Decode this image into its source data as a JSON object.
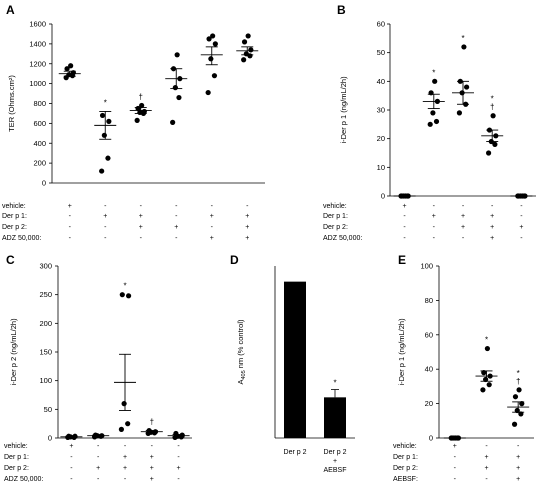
{
  "chart_data": [
    {
      "panel": "A",
      "type": "scatter",
      "ylabel": "TER (Ohms.cm²)",
      "ylim": [
        0,
        1600
      ],
      "yticks": [
        0,
        200,
        400,
        600,
        800,
        1000,
        1200,
        1400,
        1600
      ],
      "conditions": [
        {
          "label": "vehicle:",
          "marks": [
            "+",
            "-",
            "-",
            "-",
            "-",
            "-"
          ]
        },
        {
          "label": "Der p 1:",
          "marks": [
            "-",
            "+",
            "+",
            "-",
            "+",
            "+"
          ]
        },
        {
          "label": "Der p 2:",
          "marks": [
            "-",
            "-",
            "+",
            "+",
            "-",
            "+"
          ]
        },
        {
          "label": "ADZ 50,000:",
          "marks": [
            "-",
            "-",
            "-",
            "-",
            "+",
            "+"
          ]
        }
      ],
      "groups": [
        {
          "points": [
            1060,
            1080,
            1090,
            1110,
            1150,
            1180
          ],
          "mean": 1100,
          "sem_low": 1075,
          "sem_high": 1125,
          "mark": ""
        },
        {
          "points": [
            120,
            250,
            480,
            620,
            680
          ],
          "mean": 580,
          "sem_low": 440,
          "sem_high": 720,
          "mark": "*"
        },
        {
          "points": [
            630,
            700,
            710,
            720,
            750,
            780
          ],
          "mean": 730,
          "sem_low": 700,
          "sem_high": 760,
          "mark": "†"
        },
        {
          "points": [
            610,
            860,
            960,
            1050,
            1150,
            1290
          ],
          "mean": 1050,
          "sem_low": 950,
          "sem_high": 1150,
          "mark": ""
        },
        {
          "points": [
            910,
            1080,
            1250,
            1400,
            1450,
            1480
          ],
          "mean": 1290,
          "sem_low": 1190,
          "sem_high": 1370,
          "mark": ""
        },
        {
          "points": [
            1240,
            1280,
            1300,
            1340,
            1420,
            1480
          ],
          "mean": 1330,
          "sem_low": 1290,
          "sem_high": 1370,
          "mark": ""
        }
      ]
    },
    {
      "panel": "B",
      "type": "scatter",
      "ylabel": "i-Der p 1 (ng/mL/2h)",
      "ylim": [
        0,
        60
      ],
      "yticks": [
        0,
        10,
        20,
        30,
        40,
        50,
        60
      ],
      "conditions": [
        {
          "label": "vehicle:",
          "marks": [
            "+",
            "-",
            "-",
            "-",
            "-"
          ]
        },
        {
          "label": "Der p 1:",
          "marks": [
            "-",
            "+",
            "+",
            "+",
            "-"
          ]
        },
        {
          "label": "Der p 2:",
          "marks": [
            "-",
            "-",
            "+",
            "+",
            "+"
          ]
        },
        {
          "label": "ADZ 50,000:",
          "marks": [
            "-",
            "-",
            "-",
            "+",
            "-"
          ]
        }
      ],
      "groups": [
        {
          "points": [
            0,
            0,
            0,
            0,
            0,
            0
          ],
          "mean": 0,
          "sem_low": 0,
          "sem_high": 0,
          "mark": ""
        },
        {
          "points": [
            25,
            26,
            29,
            33,
            36,
            40
          ],
          "mean": 33,
          "sem_low": 30.5,
          "sem_high": 35.5,
          "mark": "*"
        },
        {
          "points": [
            29,
            32,
            36,
            38,
            40,
            52
          ],
          "mean": 36,
          "sem_low": 32,
          "sem_high": 40,
          "mark": "*"
        },
        {
          "points": [
            15,
            18,
            19,
            21,
            23,
            28
          ],
          "mean": 21,
          "sem_low": 19,
          "sem_high": 23,
          "mark": "*†"
        },
        {
          "points": [
            0,
            0,
            0,
            0,
            0,
            0
          ],
          "mean": 0,
          "sem_low": 0,
          "sem_high": 0,
          "mark": ""
        }
      ]
    },
    {
      "panel": "C",
      "type": "scatter",
      "ylabel": "i-Der p 2 (ng/mL/2h)",
      "ylim": [
        0,
        300
      ],
      "yticks": [
        0,
        50,
        100,
        150,
        200,
        250,
        300
      ],
      "conditions": [
        {
          "label": "vehicle:",
          "marks": [
            "+",
            "-",
            "-",
            "-",
            "-"
          ]
        },
        {
          "label": "Der p 1:",
          "marks": [
            "-",
            "-",
            "+",
            "+",
            "-"
          ]
        },
        {
          "label": "Der p 2:",
          "marks": [
            "-",
            "+",
            "+",
            "+",
            "+"
          ]
        },
        {
          "label": "ADZ 50,000:",
          "marks": [
            "-",
            "-",
            "-",
            "+",
            "-"
          ]
        }
      ],
      "groups": [
        {
          "points": [
            1,
            1,
            2,
            3,
            3
          ],
          "mean": 2,
          "sem_low": 1,
          "sem_high": 3,
          "mark": ""
        },
        {
          "points": [
            2,
            3,
            4,
            4,
            5
          ],
          "mean": 4,
          "sem_low": 3,
          "sem_high": 5,
          "mark": ""
        },
        {
          "points": [
            15,
            25,
            60,
            248,
            250
          ],
          "mean": 97,
          "sem_low": 48,
          "sem_high": 146,
          "mark": "*"
        },
        {
          "points": [
            8,
            9,
            10,
            11,
            13
          ],
          "mean": 11,
          "sem_low": 9,
          "sem_high": 13,
          "mark": "†"
        },
        {
          "points": [
            1,
            2,
            3,
            5,
            8
          ],
          "mean": 4,
          "sem_low": 2,
          "sem_high": 6,
          "mark": ""
        }
      ]
    },
    {
      "panel": "D",
      "type": "bar",
      "ylabel": "A405 nm (% control)",
      "ylim": [
        0,
        110
      ],
      "categories": [
        "Der p 2",
        "Der p 2 + AEBSF"
      ],
      "values": [
        100,
        26
      ],
      "errors": [
        0,
        5
      ],
      "marks": [
        "",
        "*"
      ]
    },
    {
      "panel": "E",
      "type": "scatter",
      "ylabel": "i-Der p 1 (ng/mL/2h)",
      "ylim": [
        0,
        100
      ],
      "yticks": [
        0,
        20,
        40,
        60,
        80,
        100
      ],
      "conditions": [
        {
          "label": "vehicle:",
          "marks": [
            "+",
            "-",
            "-"
          ]
        },
        {
          "label": "Der p 1:",
          "marks": [
            "-",
            "+",
            "+"
          ]
        },
        {
          "label": "Der p 2:",
          "marks": [
            "-",
            "+",
            "+"
          ]
        },
        {
          "label": "AEBSF:",
          "marks": [
            "-",
            "-",
            "+"
          ]
        }
      ],
      "groups": [
        {
          "points": [
            0,
            0,
            0,
            0,
            0,
            0
          ],
          "mean": 0,
          "sem_low": 0,
          "sem_high": 0,
          "mark": ""
        },
        {
          "points": [
            28,
            31,
            34,
            36,
            38,
            52
          ],
          "mean": 36,
          "sem_low": 33,
          "sem_high": 39,
          "mark": "*"
        },
        {
          "points": [
            8,
            14,
            16,
            20,
            24,
            28
          ],
          "mean": 18,
          "sem_low": 15,
          "sem_high": 21,
          "mark": "*†"
        }
      ]
    }
  ]
}
